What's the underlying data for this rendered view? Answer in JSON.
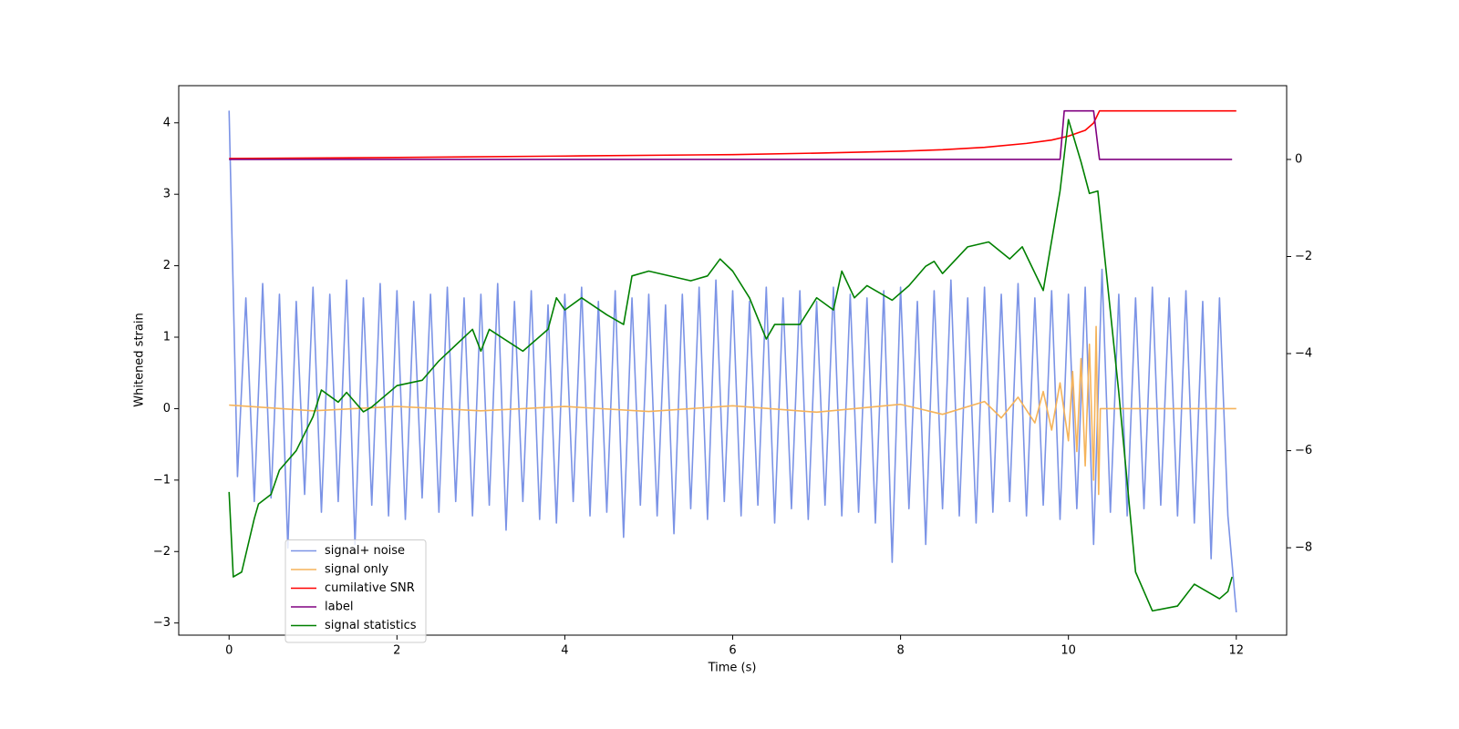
{
  "chart_data": {
    "type": "line",
    "xlabel": "Time (s)",
    "ylabel": "Whitened strain",
    "xlim": [
      -0.6,
      12.6
    ],
    "ylim": [
      -3.17,
      4.52
    ],
    "y2lim": [
      -9.8,
      1.52
    ],
    "xticks": [
      0,
      2,
      4,
      6,
      8,
      10,
      12
    ],
    "yticks": [
      {
        "value": -3,
        "label": "−3"
      },
      {
        "value": -2,
        "label": "−2"
      },
      {
        "value": -1,
        "label": "−1"
      },
      0,
      1,
      2,
      3,
      4
    ],
    "y2ticks": [
      {
        "value": -8,
        "label": "−8"
      },
      {
        "value": -6,
        "label": "−6"
      },
      {
        "value": -4,
        "label": "−4"
      },
      {
        "value": -2,
        "label": "−2"
      },
      0
    ],
    "legend_loc": "lower left",
    "series": [
      {
        "name": "signal+ noise",
        "color": "#7b93e6",
        "x": [
          0,
          0.1,
          0.2,
          0.3,
          0.4,
          0.5,
          0.6,
          0.7,
          0.8,
          0.9,
          1,
          1.1,
          1.2,
          1.3,
          1.4,
          1.5,
          1.6,
          1.7,
          1.8,
          1.9,
          2,
          2.1,
          2.2,
          2.3,
          2.4,
          2.5,
          2.6,
          2.7,
          2.8,
          2.9,
          3,
          3.1,
          3.2,
          3.3,
          3.4,
          3.5,
          3.6,
          3.7,
          3.8,
          3.9,
          4,
          4.1,
          4.2,
          4.3,
          4.4,
          4.5,
          4.6,
          4.7,
          4.8,
          4.9,
          5,
          5.1,
          5.2,
          5.3,
          5.4,
          5.5,
          5.6,
          5.7,
          5.8,
          5.9,
          6,
          6.1,
          6.2,
          6.3,
          6.4,
          6.5,
          6.6,
          6.7,
          6.8,
          6.9,
          7,
          7.1,
          7.2,
          7.3,
          7.4,
          7.5,
          7.6,
          7.7,
          7.8,
          7.9,
          8,
          8.1,
          8.2,
          8.3,
          8.4,
          8.5,
          8.6,
          8.7,
          8.8,
          8.9,
          9,
          9.1,
          9.2,
          9.3,
          9.4,
          9.5,
          9.6,
          9.7,
          9.8,
          9.9,
          10,
          10.1,
          10.2,
          10.3,
          10.4,
          10.5,
          10.6,
          10.7,
          10.8,
          10.9,
          11,
          11.1,
          11.2,
          11.3,
          11.4,
          11.5,
          11.6,
          11.7,
          11.8,
          11.9,
          12
        ],
        "values": [
          4.17,
          -0.95,
          1.55,
          -1.3,
          1.75,
          -1.25,
          1.6,
          -1.95,
          1.5,
          -1.2,
          1.7,
          -1.45,
          1.6,
          -1.3,
          1.8,
          -1.9,
          1.55,
          -1.35,
          1.75,
          -1.5,
          1.65,
          -1.55,
          1.5,
          -1.25,
          1.6,
          -1.45,
          1.7,
          -1.3,
          1.55,
          -1.5,
          1.6,
          -1.35,
          1.75,
          -1.7,
          1.5,
          -1.3,
          1.65,
          -1.55,
          1.45,
          -1.6,
          1.6,
          -1.3,
          1.7,
          -1.5,
          1.5,
          -1.45,
          1.65,
          -1.8,
          1.55,
          -1.35,
          1.6,
          -1.5,
          1.45,
          -1.75,
          1.6,
          -1.4,
          1.7,
          -1.55,
          1.8,
          -1.3,
          1.65,
          -1.5,
          1.5,
          -1.35,
          1.7,
          -1.6,
          1.55,
          -1.4,
          1.65,
          -1.55,
          1.5,
          -1.35,
          1.7,
          -1.5,
          1.6,
          -1.45,
          1.55,
          -1.6,
          1.65,
          -2.15,
          1.7,
          -1.4,
          1.5,
          -1.9,
          1.65,
          -1.4,
          1.8,
          -1.5,
          1.55,
          -1.6,
          1.7,
          -1.45,
          1.6,
          -1.3,
          1.75,
          -1.5,
          1.55,
          -1.35,
          1.65,
          -1.55,
          1.6,
          -1.4,
          1.7,
          -1.9,
          1.95,
          -1.45,
          1.6,
          -1.5,
          1.55,
          -1.4,
          1.7,
          -1.35,
          1.55,
          -1.5,
          1.65,
          -1.6,
          1.5,
          -2.1,
          1.55,
          -1.5,
          -2.85
        ]
      },
      {
        "name": "signal only",
        "color": "#f5b35a",
        "x": [
          0,
          1,
          2,
          3,
          4,
          5,
          6,
          7,
          8,
          8.5,
          9,
          9.2,
          9.4,
          9.6,
          9.7,
          9.8,
          9.9,
          10,
          10.05,
          10.1,
          10.15,
          10.2,
          10.25,
          10.3,
          10.33,
          10.36,
          10.38,
          12
        ],
        "values": [
          0.05,
          -0.03,
          0.03,
          -0.03,
          0.03,
          -0.04,
          0.04,
          -0.05,
          0.06,
          -0.08,
          0.1,
          -0.13,
          0.16,
          -0.2,
          0.24,
          -0.3,
          0.36,
          -0.45,
          0.52,
          -0.6,
          0.7,
          -0.8,
          0.9,
          -1.0,
          1.15,
          -1.2,
          0,
          0
        ]
      },
      {
        "name": "cumilative SNR",
        "color": "#ff0000",
        "axis": "y2",
        "x": [
          0,
          2,
          4,
          6,
          7,
          8,
          8.5,
          9,
          9.5,
          9.8,
          10,
          10.2,
          10.3,
          10.37,
          12
        ],
        "values": [
          0.02,
          0.04,
          0.07,
          0.1,
          0.13,
          0.17,
          0.2,
          0.25,
          0.33,
          0.4,
          0.48,
          0.6,
          0.75,
          1,
          1
        ]
      },
      {
        "name": "label",
        "color": "#800080",
        "axis": "y2",
        "x": [
          0,
          9.9,
          9.95,
          10.3,
          10.37,
          11.95
        ],
        "values": [
          0,
          0,
          1,
          1,
          0,
          0
        ]
      },
      {
        "name": "signal statistics",
        "color": "#008000",
        "axis": "y2",
        "x": [
          0,
          0.05,
          0.15,
          0.3,
          0.35,
          0.5,
          0.6,
          0.8,
          1,
          1.1,
          1.3,
          1.4,
          1.6,
          1.7,
          2,
          2.3,
          2.5,
          2.9,
          3,
          3.1,
          3.5,
          3.8,
          3.9,
          4,
          4.2,
          4.5,
          4.7,
          4.8,
          5,
          5.5,
          5.7,
          5.85,
          6,
          6.2,
          6.4,
          6.5,
          6.8,
          7,
          7.2,
          7.3,
          7.45,
          7.6,
          7.9,
          8.1,
          8.3,
          8.4,
          8.5,
          8.8,
          9.05,
          9.3,
          9.45,
          9.7,
          9.9,
          10,
          10.15,
          10.25,
          10.35,
          10.45,
          10.6,
          10.8,
          11,
          11.3,
          11.5,
          11.8,
          11.9,
          11.95
        ],
        "values": [
          -6.85,
          -8.6,
          -8.5,
          -7.4,
          -7.1,
          -6.9,
          -6.4,
          -6.0,
          -5.3,
          -4.75,
          -5.0,
          -4.8,
          -5.2,
          -5.1,
          -4.66,
          -4.55,
          -4.15,
          -3.5,
          -3.95,
          -3.5,
          -3.95,
          -3.5,
          -2.85,
          -3.1,
          -2.85,
          -3.2,
          -3.4,
          -2.4,
          -2.3,
          -2.5,
          -2.4,
          -2.05,
          -2.3,
          -2.85,
          -3.7,
          -3.4,
          -3.4,
          -2.85,
          -3.1,
          -2.3,
          -2.85,
          -2.6,
          -2.9,
          -2.6,
          -2.2,
          -2.1,
          -2.35,
          -1.8,
          -1.7,
          -2.05,
          -1.8,
          -2.7,
          -0.65,
          0.82,
          -0.05,
          -0.7,
          -0.65,
          -2.3,
          -4.8,
          -8.5,
          -9.3,
          -9.2,
          -8.75,
          -9.05,
          -8.9,
          -8.6
        ]
      }
    ]
  }
}
